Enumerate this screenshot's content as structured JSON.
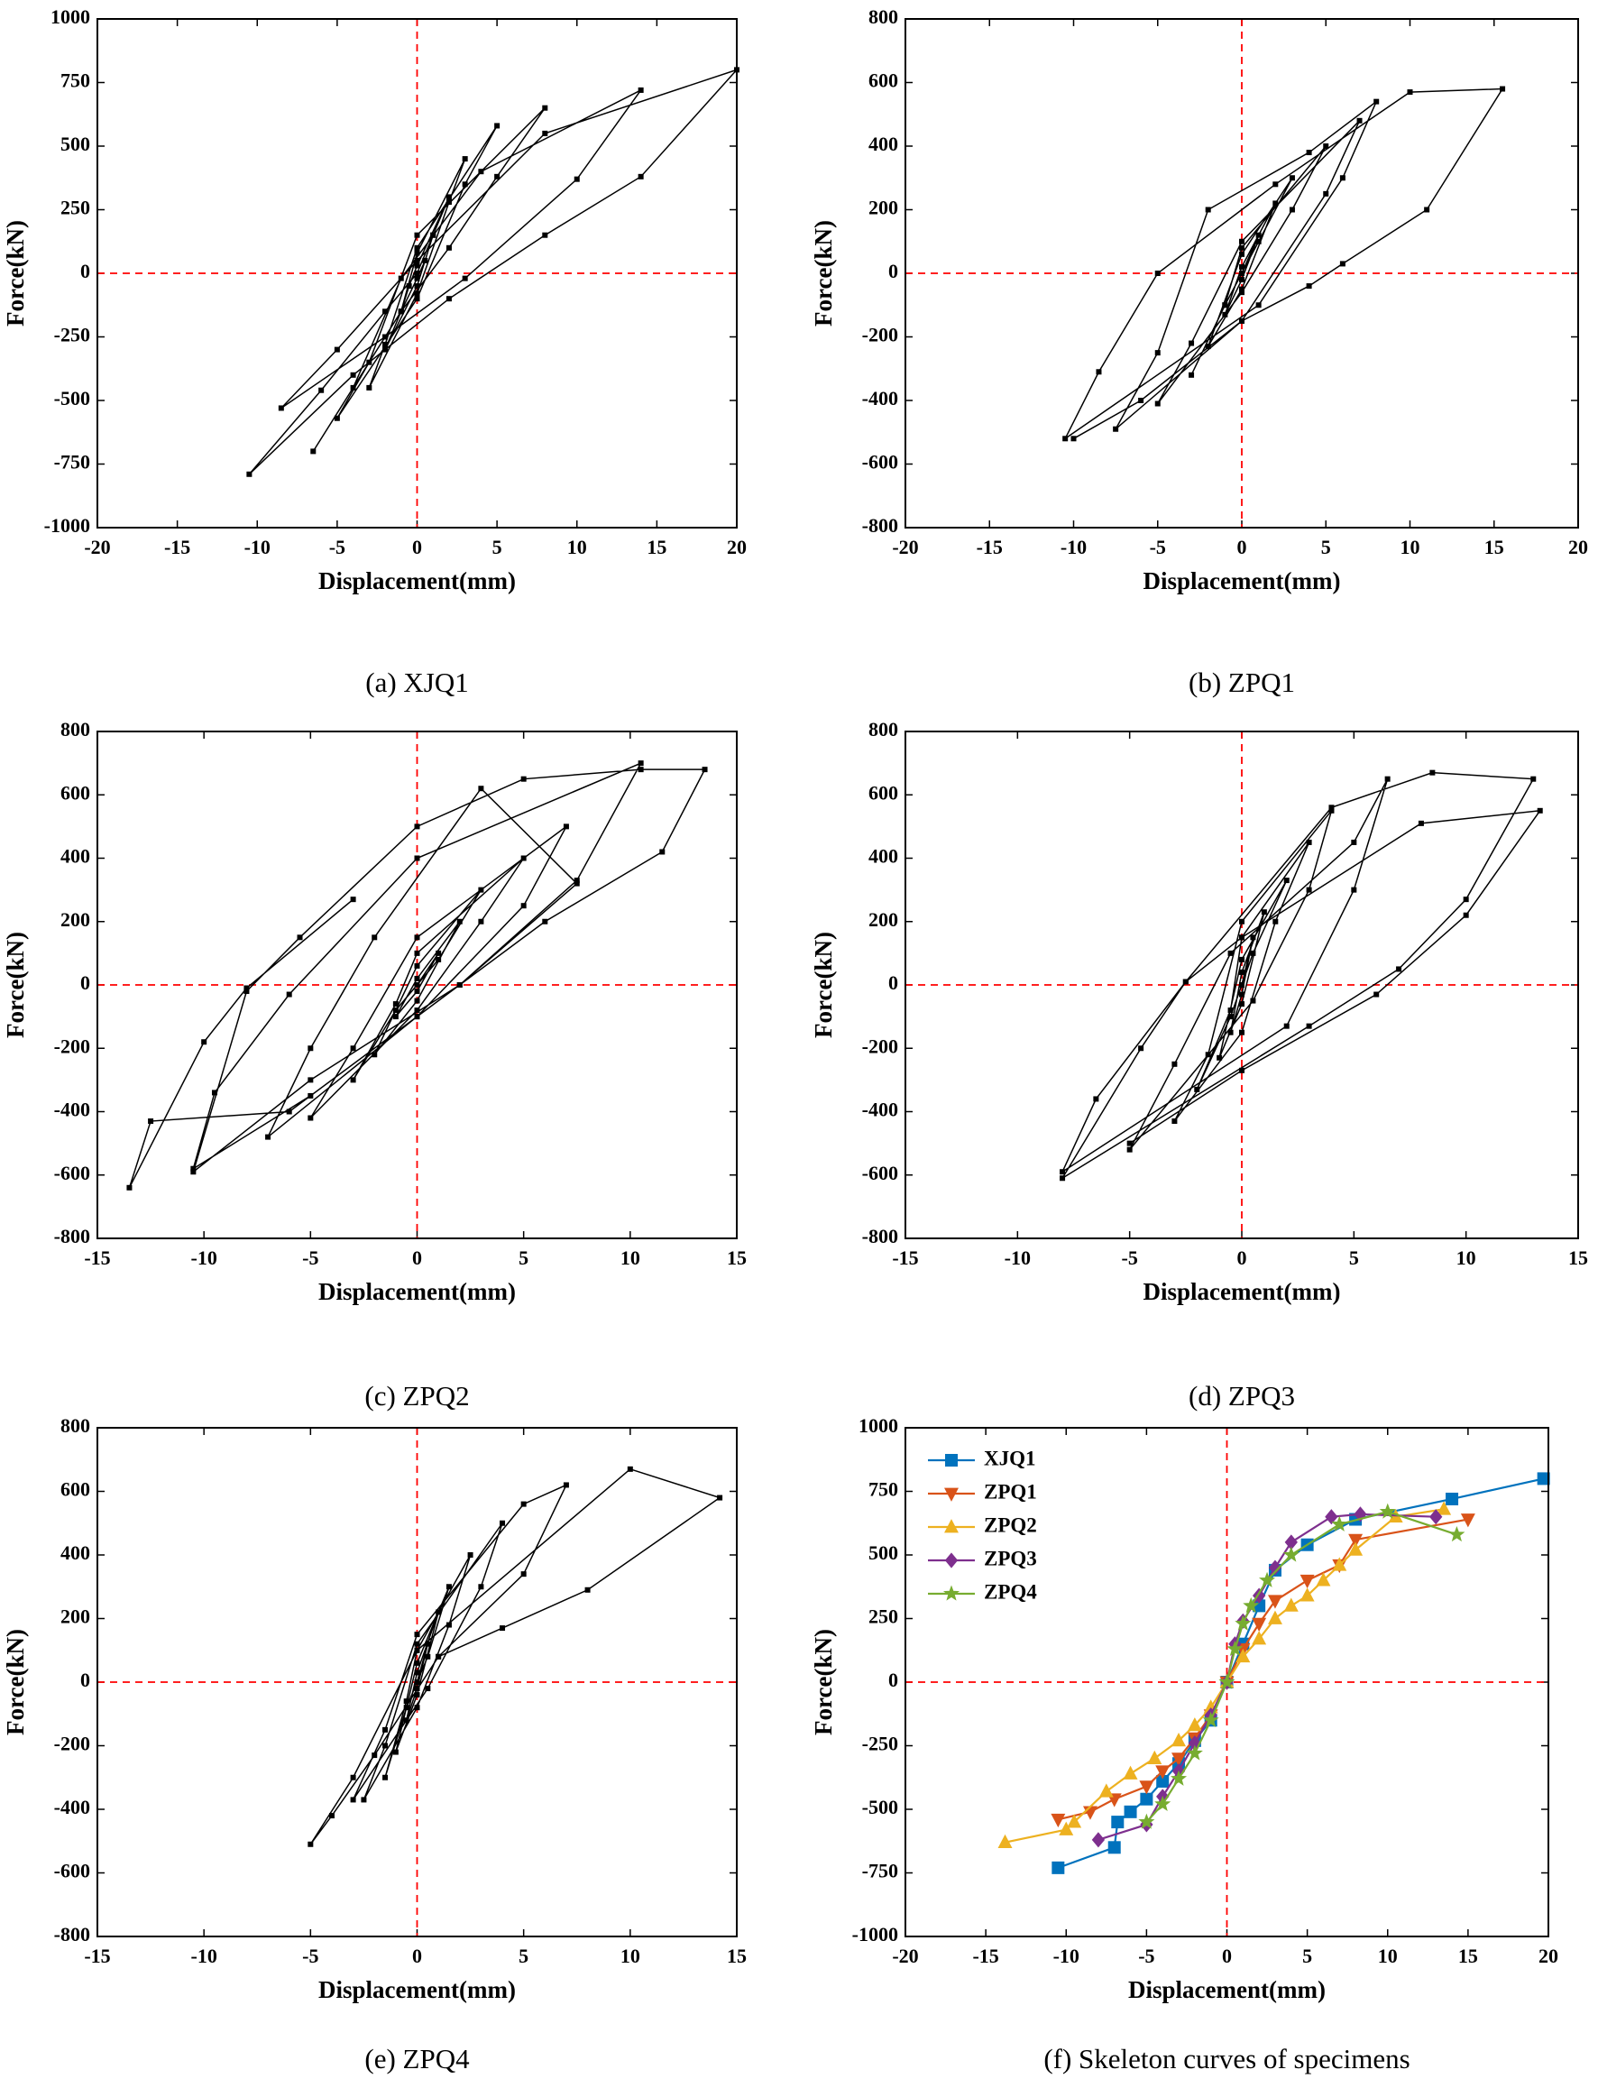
{
  "chart_data": [
    {
      "type": "line",
      "caption": "(a) XJQ1",
      "xlabel": "Displacement(mm)",
      "ylabel": "Force(kN)",
      "xlim": [
        -20,
        20
      ],
      "ylim": [
        -1000,
        1000
      ],
      "xticks": [
        -20,
        -15,
        -10,
        -5,
        0,
        5,
        10,
        15,
        20
      ],
      "yticks": [
        -1000,
        -750,
        -500,
        -250,
        0,
        250,
        500,
        750,
        1000
      ],
      "series": [
        {
          "color": "#000000",
          "marker": "square",
          "x": [
            0,
            1,
            0.5,
            0,
            -1,
            -0.5,
            0,
            2,
            1,
            0,
            -2,
            -1,
            0,
            3,
            2,
            0,
            -3,
            -2,
            0,
            5,
            3,
            0,
            -5,
            -3,
            0,
            8,
            5,
            2,
            -1,
            -6.5,
            -4,
            -1,
            4,
            14,
            10,
            3,
            -2,
            -8.5,
            -5,
            0,
            8,
            20,
            14,
            8,
            2,
            -4,
            -10.5,
            -6,
            -2,
            0
          ],
          "values": [
            0,
            150,
            50,
            -20,
            -150,
            -50,
            30,
            300,
            150,
            -50,
            -300,
            -150,
            80,
            450,
            280,
            -80,
            -450,
            -280,
            100,
            580,
            350,
            -100,
            -570,
            -350,
            150,
            650,
            380,
            100,
            -150,
            -700,
            -450,
            -20,
            400,
            720,
            370,
            -20,
            -250,
            -530,
            -300,
            50,
            550,
            800,
            380,
            150,
            -100,
            -400,
            -790,
            -460,
            -150,
            0
          ]
        }
      ]
    },
    {
      "type": "line",
      "caption": "(b) ZPQ1",
      "xlabel": "Displacement(mm)",
      "ylabel": "Force(kN)",
      "xlim": [
        -20,
        20
      ],
      "ylim": [
        -800,
        800
      ],
      "xticks": [
        -20,
        -15,
        -10,
        -5,
        0,
        5,
        10,
        15,
        20
      ],
      "yticks": [
        -800,
        -600,
        -400,
        -200,
        0,
        200,
        400,
        600,
        800
      ],
      "series": [
        {
          "color": "#000000",
          "marker": "square",
          "x": [
            0,
            1,
            0,
            -1,
            0,
            2,
            0,
            -2,
            0,
            3,
            1,
            -1,
            -3,
            -1,
            0,
            5,
            3,
            0,
            -5,
            -3,
            0,
            7,
            5,
            0,
            -7.5,
            -5,
            -2,
            4,
            8,
            6,
            1,
            -10.5,
            -8.5,
            -5,
            2,
            10,
            15.5,
            11,
            6,
            4,
            0,
            -6,
            -10
          ],
          "values": [
            0,
            120,
            -20,
            -130,
            20,
            220,
            -50,
            -230,
            60,
            300,
            100,
            -100,
            -320,
            -100,
            80,
            400,
            200,
            -60,
            -410,
            -220,
            100,
            480,
            250,
            -150,
            -490,
            -250,
            200,
            380,
            540,
            300,
            -100,
            -520,
            -310,
            0,
            280,
            570,
            580,
            200,
            30,
            -40,
            -150,
            -400,
            -520
          ]
        }
      ]
    },
    {
      "type": "line",
      "caption": "(c) ZPQ2",
      "xlabel": "Displacement(mm)",
      "ylabel": "Force(kN)",
      "xlim": [
        -15,
        15
      ],
      "ylim": [
        -800,
        800
      ],
      "xticks": [
        -15,
        -10,
        -5,
        0,
        5,
        10,
        15
      ],
      "yticks": [
        -800,
        -600,
        -400,
        -200,
        0,
        200,
        400,
        600,
        800
      ],
      "series": [
        {
          "color": "#000000",
          "marker": "square",
          "x": [
            0,
            1,
            0,
            -1,
            0,
            2,
            0,
            -2,
            0,
            3,
            1,
            -1,
            -3,
            -1,
            0,
            5,
            3,
            0,
            -5,
            -3,
            0,
            7,
            5,
            0,
            -7,
            -5,
            -2,
            3,
            7.5,
            2,
            -5,
            -10.5,
            -9.5,
            -6,
            0,
            10.5,
            7.5,
            2,
            -5,
            -10.5,
            -8,
            -5.5,
            0,
            5,
            10.5,
            13.5,
            11.5,
            6,
            0,
            -6,
            -12.5,
            -13.5,
            -10,
            -8,
            -3
          ],
          "values": [
            0,
            100,
            -20,
            -100,
            20,
            200,
            -50,
            -220,
            60,
            300,
            80,
            -80,
            -300,
            -60,
            100,
            400,
            200,
            -80,
            -420,
            -200,
            150,
            500,
            250,
            -100,
            -480,
            -200,
            150,
            620,
            320,
            0,
            -350,
            -580,
            -340,
            -30,
            400,
            700,
            330,
            0,
            -300,
            -590,
            -20,
            150,
            500,
            650,
            680,
            680,
            420,
            200,
            -100,
            -400,
            -430,
            -640,
            -180,
            -10,
            270
          ]
        }
      ]
    },
    {
      "type": "line",
      "caption": "(d) ZPQ3",
      "xlabel": "Displacement(mm)",
      "ylabel": "Force(kN)",
      "xlim": [
        -15,
        15
      ],
      "ylim": [
        -800,
        800
      ],
      "xticks": [
        -15,
        -10,
        -5,
        0,
        5,
        10,
        15
      ],
      "yticks": [
        -800,
        -600,
        -400,
        -200,
        0,
        200,
        400,
        600,
        800
      ],
      "series": [
        {
          "color": "#000000",
          "marker": "square",
          "x": [
            0,
            0.5,
            0,
            -0.5,
            0,
            1,
            0,
            -1,
            0,
            2,
            0.5,
            -0.5,
            -2,
            -0.5,
            0,
            3,
            1.5,
            0,
            -3,
            -1.5,
            0,
            4,
            3,
            0.5,
            -5,
            -3,
            -0.5,
            5,
            6.5,
            5,
            2,
            -8,
            -6.5,
            -2.5,
            4,
            8.5,
            13,
            10,
            7,
            3,
            -8,
            -4.5,
            -2.5,
            0,
            8,
            13.3,
            10,
            6,
            0,
            -5
          ],
          "values": [
            0,
            150,
            -30,
            -150,
            40,
            230,
            -60,
            -230,
            80,
            330,
            100,
            -100,
            -330,
            -80,
            150,
            450,
            200,
            -150,
            -430,
            -220,
            200,
            550,
            300,
            -50,
            -520,
            -250,
            100,
            450,
            650,
            300,
            -130,
            -590,
            -360,
            10,
            560,
            670,
            650,
            270,
            50,
            -130,
            -610,
            -200,
            10,
            150,
            510,
            550,
            220,
            -30,
            -270,
            -500
          ]
        }
      ]
    },
    {
      "type": "line",
      "caption": "(e) ZPQ4",
      "xlabel": "Displacement(mm)",
      "ylabel": "Force(kN)",
      "xlim": [
        -15,
        15
      ],
      "ylim": [
        -800,
        800
      ],
      "xticks": [
        -15,
        -10,
        -5,
        0,
        5,
        10,
        15
      ],
      "yticks": [
        -800,
        -600,
        -400,
        -200,
        0,
        200,
        400,
        600,
        800
      ],
      "series": [
        {
          "color": "#000000",
          "marker": "square",
          "x": [
            0,
            0.5,
            0,
            -0.5,
            0,
            1,
            0,
            -1,
            0,
            1.5,
            0.5,
            -0.5,
            -1.5,
            -0.5,
            0,
            2.5,
            1.5,
            0,
            -2.5,
            -1.5,
            0,
            4,
            3,
            0.5,
            -3,
            -1.5,
            0,
            5,
            7,
            5,
            1,
            -2,
            -4,
            -5,
            -3,
            0,
            10,
            14.2,
            8,
            4,
            1
          ],
          "values": [
            0,
            120,
            -20,
            -120,
            30,
            220,
            -40,
            -220,
            60,
            300,
            80,
            -80,
            -300,
            -60,
            100,
            400,
            180,
            -80,
            -370,
            -200,
            120,
            500,
            300,
            -20,
            -370,
            -150,
            150,
            560,
            620,
            340,
            80,
            -230,
            -420,
            -510,
            -300,
            100,
            670,
            580,
            290,
            170,
            80
          ]
        }
      ]
    },
    {
      "type": "line",
      "caption": "(f) Skeleton curves of specimens",
      "xlabel": "Displacement(mm)",
      "ylabel": "Force(kN)",
      "xlim": [
        -20,
        20
      ],
      "ylim": [
        -1000,
        1000
      ],
      "xticks": [
        -20,
        -15,
        -10,
        -5,
        0,
        5,
        10,
        15,
        20
      ],
      "yticks": [
        -1000,
        -750,
        -500,
        -250,
        0,
        250,
        500,
        750,
        1000
      ],
      "legend": "upper left",
      "series": [
        {
          "name": "XJQ1",
          "color": "#0072bd",
          "marker": "square",
          "x": [
            -10.5,
            -7,
            -6.8,
            -6,
            -5,
            -4,
            -3,
            -2,
            -1,
            0,
            1,
            2,
            3,
            5,
            8,
            14,
            19.7
          ],
          "values": [
            -730,
            -650,
            -550,
            -510,
            -460,
            -390,
            -320,
            -230,
            -150,
            0,
            150,
            300,
            440,
            540,
            640,
            720,
            800
          ]
        },
        {
          "name": "ZPQ1",
          "color": "#d95319",
          "marker": "triangle-down",
          "x": [
            -10.5,
            -8.5,
            -7,
            -5,
            -4,
            -3,
            -2,
            -1,
            0,
            1,
            2,
            3,
            5,
            7,
            8,
            15
          ],
          "values": [
            -540,
            -510,
            -460,
            -410,
            -350,
            -300,
            -220,
            -130,
            0,
            130,
            230,
            320,
            400,
            460,
            560,
            640
          ]
        },
        {
          "name": "ZPQ2",
          "color": "#edb120",
          "marker": "triangle-up",
          "x": [
            -13.8,
            -10,
            -9.5,
            -7.5,
            -6,
            -4.5,
            -3,
            -2,
            -1,
            0,
            1,
            2,
            3,
            4,
            5,
            6,
            7,
            8,
            10.5,
            13.5
          ],
          "values": [
            -630,
            -580,
            -550,
            -430,
            -360,
            -300,
            -230,
            -170,
            -100,
            0,
            100,
            170,
            250,
            300,
            340,
            400,
            460,
            520,
            650,
            680
          ]
        },
        {
          "name": "ZPQ3",
          "color": "#7e2f8e",
          "marker": "diamond",
          "x": [
            -8,
            -5,
            -4,
            -3,
            -2,
            -1,
            0,
            0.5,
            1,
            2,
            3,
            4,
            6.5,
            8.3,
            13
          ],
          "values": [
            -620,
            -560,
            -450,
            -350,
            -240,
            -130,
            0,
            150,
            240,
            340,
            450,
            550,
            650,
            660,
            650
          ]
        },
        {
          "name": "ZPQ4",
          "color": "#77ac30",
          "marker": "star",
          "x": [
            -5,
            -4,
            -3,
            -2,
            -1,
            0,
            0.5,
            1,
            1.5,
            2.5,
            4,
            7,
            10,
            14.3
          ],
          "values": [
            -550,
            -480,
            -380,
            -280,
            -150,
            0,
            130,
            230,
            300,
            400,
            500,
            620,
            670,
            580
          ]
        }
      ]
    }
  ]
}
